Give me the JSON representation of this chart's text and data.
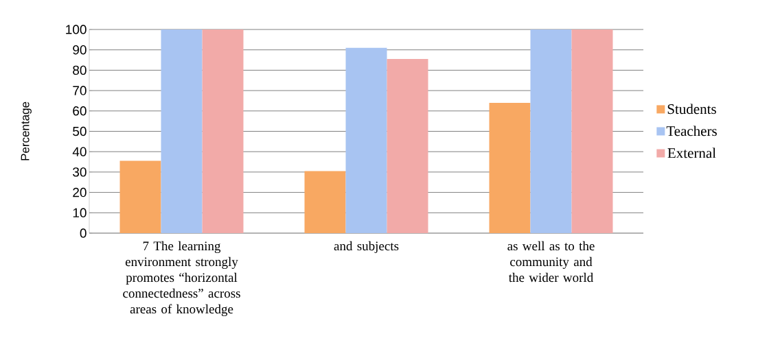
{
  "chart_data": {
    "type": "bar",
    "ylabel": "Percentage",
    "categories": [
      "7 The learning environment strongly promotes “horizontal connectedness” across areas of knowledge",
      "and subjects",
      "as well as to the community and the wider world"
    ],
    "series": [
      {
        "name": "Students",
        "color": "#f8a862",
        "values": [
          35.5,
          30.5,
          64
        ]
      },
      {
        "name": "Teachers",
        "color": "#a8c4f2",
        "values": [
          100,
          91,
          100
        ]
      },
      {
        "name": "External",
        "color": "#f2aaa8",
        "values": [
          100,
          85.5,
          100
        ]
      }
    ],
    "ylim": [
      0,
      100
    ],
    "yticks": [
      0,
      10,
      20,
      30,
      40,
      50,
      60,
      70,
      80,
      90,
      100
    ],
    "grid": "y",
    "legend": "right"
  }
}
